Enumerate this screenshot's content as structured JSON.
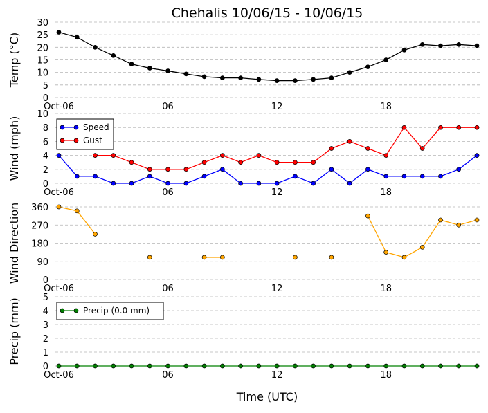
{
  "title": "Chehalis 10/06/15 - 10/06/15",
  "xlabel": "Time (UTC)",
  "x_ticks": [
    "Oct-06",
    "06",
    "12",
    "18"
  ],
  "chart_data": [
    {
      "type": "line",
      "ylabel": "Temp (°C)",
      "ylim": [
        0,
        30
      ],
      "y_ticks": [
        0,
        5,
        10,
        15,
        20,
        25,
        30
      ],
      "x_hours": [
        0,
        1,
        2,
        3,
        4,
        5,
        6,
        7,
        8,
        9,
        10,
        11,
        12,
        13,
        14,
        15,
        16,
        17,
        18,
        19,
        20,
        21,
        22,
        23
      ],
      "series": [
        {
          "color": "#000000",
          "values": [
            26,
            24,
            20,
            16.7,
            13.3,
            11.7,
            10.6,
            9.4,
            8.3,
            7.8,
            7.8,
            7.2,
            6.7,
            6.7,
            7.2,
            7.8,
            10,
            12.2,
            15,
            18.9,
            21.1,
            20.6,
            21.1,
            20.6
          ]
        }
      ],
      "grid": true
    },
    {
      "type": "line",
      "ylabel": "Wind (mph)",
      "ylim": [
        0,
        10
      ],
      "y_ticks": [
        0,
        2,
        4,
        6,
        8,
        10
      ],
      "x_hours": [
        0,
        1,
        2,
        3,
        4,
        5,
        6,
        7,
        8,
        9,
        10,
        11,
        12,
        13,
        14,
        15,
        16,
        17,
        18,
        19,
        20,
        21,
        22,
        23
      ],
      "series": [
        {
          "name": "Speed",
          "color": "#0000ff",
          "values": [
            4,
            1,
            1,
            0,
            0,
            1,
            0,
            0,
            1,
            2,
            0,
            0,
            0,
            1,
            0,
            2,
            0,
            2,
            1,
            1,
            1,
            1,
            2,
            4
          ]
        },
        {
          "name": "Gust",
          "color": "#ff0000",
          "values": [
            null,
            null,
            4,
            4,
            3,
            2,
            2,
            2,
            3,
            4,
            3,
            4,
            3,
            3,
            3,
            5,
            6,
            5,
            4,
            8,
            5,
            8,
            8,
            8
          ]
        }
      ],
      "legend": "upper-left",
      "grid": true
    },
    {
      "type": "line",
      "ylabel": "Wind Direction",
      "ylim": [
        0,
        360
      ],
      "y_ticks": [
        0,
        90,
        180,
        270,
        360
      ],
      "x_hours": [
        0,
        1,
        2,
        3,
        4,
        5,
        6,
        7,
        8,
        9,
        10,
        11,
        12,
        13,
        14,
        15,
        16,
        17,
        18,
        19,
        20,
        21,
        22,
        23
      ],
      "series": [
        {
          "color": "#ffa500",
          "values": [
            360,
            340,
            225,
            null,
            null,
            110,
            null,
            null,
            110,
            110,
            null,
            null,
            null,
            110,
            null,
            110,
            null,
            315,
            135,
            110,
            160,
            295,
            270,
            295
          ]
        }
      ],
      "grid": true
    },
    {
      "type": "line",
      "ylabel": "Precip (mm)",
      "ylim": [
        0,
        5
      ],
      "y_ticks": [
        0,
        1,
        2,
        3,
        4,
        5
      ],
      "x_hours": [
        0,
        1,
        2,
        3,
        4,
        5,
        6,
        7,
        8,
        9,
        10,
        11,
        12,
        13,
        14,
        15,
        16,
        17,
        18,
        19,
        20,
        21,
        22,
        23
      ],
      "series": [
        {
          "name": "Precip (0.0 mm)",
          "color": "#008000",
          "values": [
            0,
            0,
            0,
            0,
            0,
            0,
            0,
            0,
            0,
            0,
            0,
            0,
            0,
            0,
            0,
            0,
            0,
            0,
            0,
            0,
            0,
            0,
            0,
            0
          ]
        }
      ],
      "legend": "upper-left",
      "grid": true
    }
  ]
}
